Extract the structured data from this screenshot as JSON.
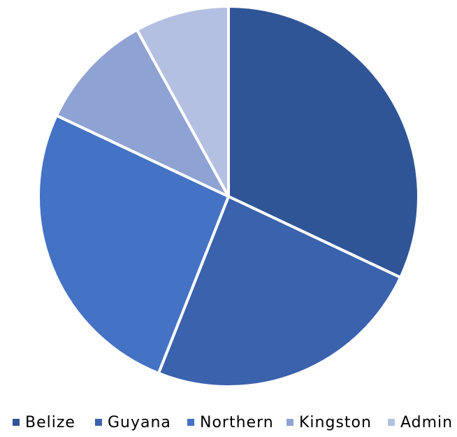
{
  "chart_data": {
    "type": "pie",
    "categories": [
      "Belize",
      "Guyana",
      "Northern",
      "Kingston",
      "Admin"
    ],
    "values": [
      32,
      24,
      26,
      10,
      8
    ],
    "colors": [
      "#2F5597",
      "#3A62AD",
      "#4472C4",
      "#8FA2D4",
      "#B4C0E1"
    ],
    "slice_border_color": "#ffffff",
    "legend_position": "bottom",
    "start_angle": "top",
    "direction": "clockwise"
  }
}
